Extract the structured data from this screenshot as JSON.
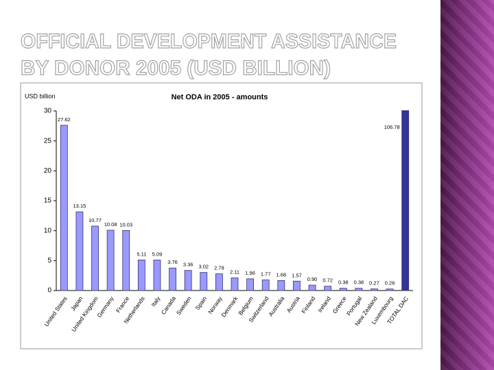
{
  "slide": {
    "title": [
      "OFFICIAL DEVELOPMENT ASSISTANCE",
      "BY DONOR 2005 (USD BILLION)"
    ]
  },
  "chart_data": {
    "type": "bar",
    "title": "Net ODA in 2005 - amounts",
    "y_label": "USD billion",
    "categories": [
      "United States",
      "Japan",
      "United Kingdom",
      "Germany",
      "France",
      "Netherlands",
      "Italy",
      "Canada",
      "Sweden",
      "Spain",
      "Norway",
      "Denmark",
      "Belgium",
      "Switzerland",
      "Australia",
      "Austria",
      "Finland",
      "Ireland",
      "Greece",
      "Portugal",
      "New Zealand",
      "Luxembourg",
      "TOTAL DAC"
    ],
    "values": [
      27.62,
      13.15,
      10.77,
      10.08,
      10.03,
      5.11,
      5.09,
      3.76,
      3.36,
      3.02,
      2.79,
      2.11,
      1.96,
      1.77,
      1.68,
      1.57,
      0.9,
      0.72,
      0.38,
      0.38,
      0.27,
      0.26,
      106.78
    ],
    "value_labels": [
      "27.62",
      "13.15",
      "10.77",
      "10.08",
      "10.03",
      "5.11",
      "5.09",
      "3.76",
      "3.36",
      "3.02",
      "2.79",
      "2.11",
      "1.96",
      "1.77",
      "1.68",
      "1.57",
      "0.90",
      "0.72",
      "0.38",
      "0.38",
      "0.27",
      "0.26",
      "106.78"
    ],
    "colors": [
      "#9999ff",
      "#9999ff",
      "#9999ff",
      "#9999ff",
      "#9999ff",
      "#9999ff",
      "#9999ff",
      "#9999ff",
      "#9999ff",
      "#9999ff",
      "#9999ff",
      "#9999ff",
      "#9999ff",
      "#9999ff",
      "#9999ff",
      "#9999ff",
      "#9999ff",
      "#9999ff",
      "#9999ff",
      "#9999ff",
      "#9999ff",
      "#9999ff",
      "#333399"
    ],
    "ylim": [
      0,
      30
    ],
    "yticks": [
      0,
      5,
      10,
      15,
      20,
      25,
      30
    ],
    "grid": false
  }
}
